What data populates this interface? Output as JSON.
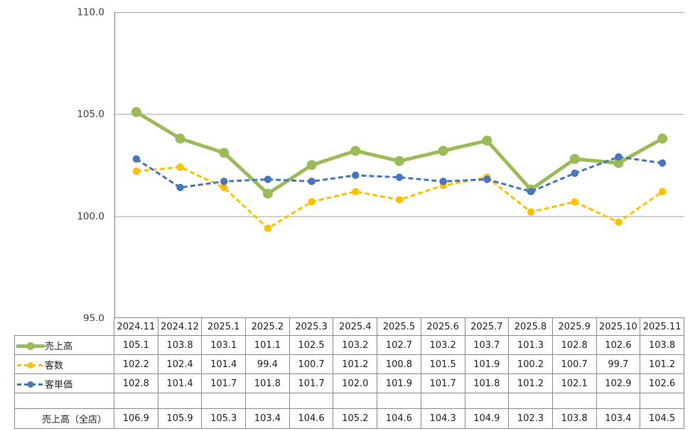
{
  "chart_data": {
    "type": "line",
    "title": "",
    "xlabel": "",
    "ylabel": "",
    "categories": [
      "2024.11",
      "2024.12",
      "2025.1",
      "2025.2",
      "2025.3",
      "2025.4",
      "2025.5",
      "2025.6",
      "2025.7",
      "2025.8",
      "2025.9",
      "2025.10",
      "2025.11"
    ],
    "series": [
      {
        "key": "sales",
        "name": "売上高",
        "color": "#9BBB59",
        "line": "solid",
        "width": 5,
        "marker_r": 7,
        "values": [
          105.1,
          103.8,
          103.1,
          101.1,
          102.5,
          103.2,
          102.7,
          103.2,
          103.7,
          101.3,
          102.8,
          102.6,
          103.8
        ]
      },
      {
        "key": "customer-count",
        "name": "客数",
        "color": "#FFC000",
        "line": "dashed",
        "width": 3,
        "marker_r": 5.2,
        "values": [
          102.2,
          102.4,
          101.4,
          99.4,
          100.7,
          101.2,
          100.8,
          101.5,
          101.9,
          100.2,
          100.7,
          99.7,
          101.2
        ]
      },
      {
        "key": "customer-unit-price",
        "name": "客単価",
        "color": "#4576BE",
        "line": "dashed",
        "width": 3,
        "marker_r": 5.2,
        "values": [
          102.8,
          101.4,
          101.7,
          101.8,
          101.7,
          102.0,
          101.9,
          101.7,
          101.8,
          101.2,
          102.1,
          102.9,
          102.6
        ]
      }
    ],
    "ylim": [
      95,
      110
    ],
    "yticks": [
      110,
      105,
      100,
      95
    ],
    "ytick_labels": [
      "110.0",
      "105.0",
      "100.0",
      "95.0"
    ],
    "grid": true,
    "legend_position": "table-row-labels",
    "draw_order": [
      "sales",
      "customer-count",
      "customer-unit-price"
    ]
  },
  "table": {
    "header": [
      "2024.11",
      "2024.12",
      "2025.1",
      "2025.2",
      "2025.3",
      "2025.4",
      "2025.5",
      "2025.6",
      "2025.7",
      "2025.8",
      "2025.9",
      "2025.10",
      "2025.11"
    ],
    "rows": [
      {
        "key": "sales",
        "label": "売上高",
        "values": [
          "105.1",
          "103.8",
          "103.1",
          "101.1",
          "102.5",
          "103.2",
          "102.7",
          "103.2",
          "103.7",
          "101.3",
          "102.8",
          "102.6",
          "103.8"
        ]
      },
      {
        "key": "customer-count",
        "label": "客数",
        "values": [
          "102.2",
          "102.4",
          "101.4",
          "99.4",
          "100.7",
          "101.2",
          "100.8",
          "101.5",
          "101.9",
          "100.2",
          "100.7",
          "99.7",
          "101.2"
        ]
      },
      {
        "key": "customer-unit-price",
        "label": "客単価",
        "values": [
          "102.8",
          "101.4",
          "101.7",
          "101.8",
          "101.7",
          "102.0",
          "101.9",
          "101.7",
          "101.8",
          "101.2",
          "102.1",
          "102.9",
          "102.6"
        ]
      }
    ],
    "spacer_row": {
      "label": "",
      "values": [
        "",
        "",
        "",
        "",
        "",
        "",
        "",
        "",
        "",
        "",
        "",
        "",
        ""
      ]
    },
    "footer_row": {
      "key": "sales-all-stores",
      "label": "売上高（全店）",
      "values": [
        "106.9",
        "105.9",
        "105.3",
        "103.4",
        "104.6",
        "105.2",
        "104.6",
        "104.3",
        "104.9",
        "102.3",
        "103.8",
        "103.4",
        "104.5"
      ]
    }
  },
  "colors": {
    "grid_line": "#A3A3A3",
    "axis_line": "#808080",
    "table_border": "#8a8a8a",
    "axis_text": "#404040",
    "table_text": "#1f1f1f",
    "background": "#ffffff"
  }
}
